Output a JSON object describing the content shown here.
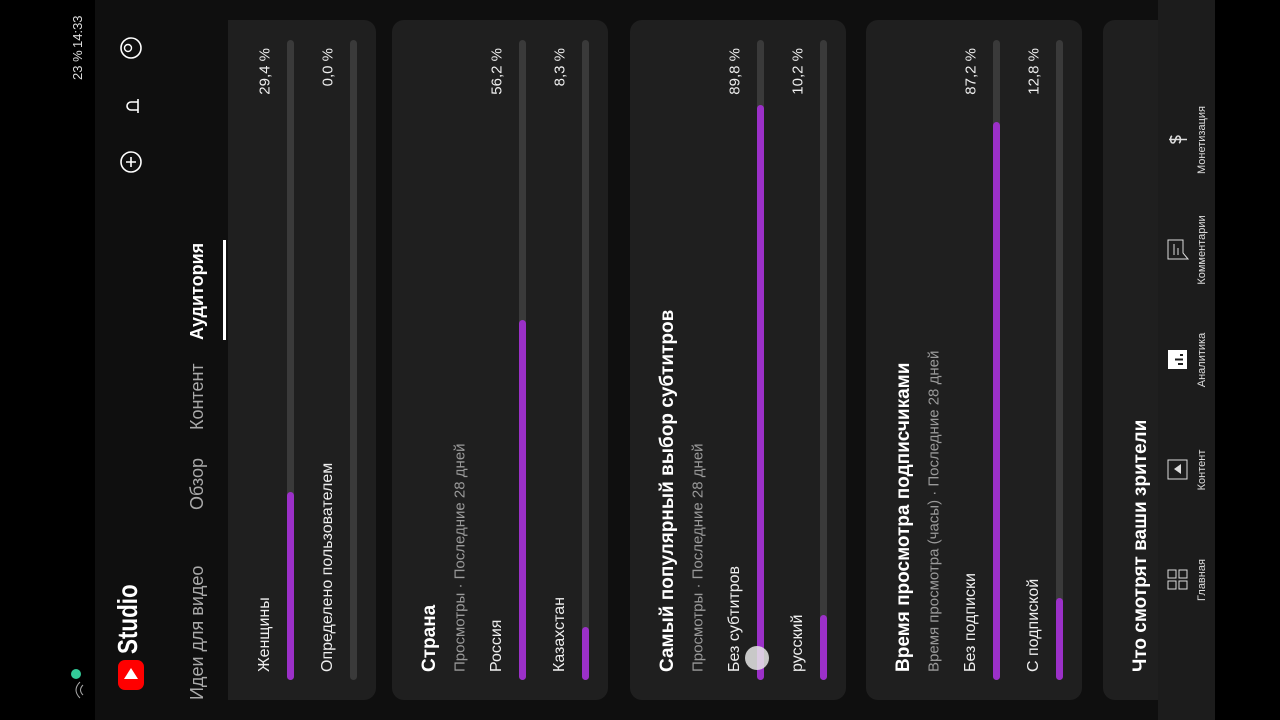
{
  "status": {
    "time": "14:33",
    "battery": "23 %"
  },
  "header": {
    "logo": "Studio"
  },
  "tabs": [
    "Идеи для видео",
    "Обзор",
    "Контент",
    "Аудитория"
  ],
  "cards": [
    {
      "rows": [
        {
          "label": "Женщины",
          "value": 29.4,
          "value_label": "29,4 %"
        },
        {
          "label": "Определено пользователем",
          "value": 0,
          "value_label": "0,0 %"
        }
      ]
    },
    {
      "title": "Страна",
      "subtitle": "Просмотры · Последние 28 дней",
      "rows": [
        {
          "label": "Россия",
          "value": 56.2,
          "value_label": "56,2 %"
        },
        {
          "label": "Казахстан",
          "value": 8.3,
          "value_label": "8,3 %"
        }
      ]
    },
    {
      "title": "Самый популярный выбор субтитров",
      "subtitle": "Просмотры · Последние 28 дней",
      "rows": [
        {
          "label": "Без субтитров",
          "value": 89.8,
          "value_label": "89,8 %"
        },
        {
          "label": "русский",
          "value": 10.2,
          "value_label": "10,2 %"
        }
      ]
    },
    {
      "title": "Время просмотра подписчиками",
      "subtitle": "Время просмотра (часы) · Последние 28 дней",
      "rows": [
        {
          "label": "Без подписки",
          "value": 87.2,
          "value_label": "87,2 %"
        },
        {
          "label": "С подпиской",
          "value": 12.8,
          "value_label": "12,8 %"
        }
      ]
    },
    {
      "title": "Что смотрят ваши зрители"
    }
  ],
  "nav": [
    "Главная",
    "Контент",
    "Аналитика",
    "Комментарии",
    "Монетизация"
  ]
}
